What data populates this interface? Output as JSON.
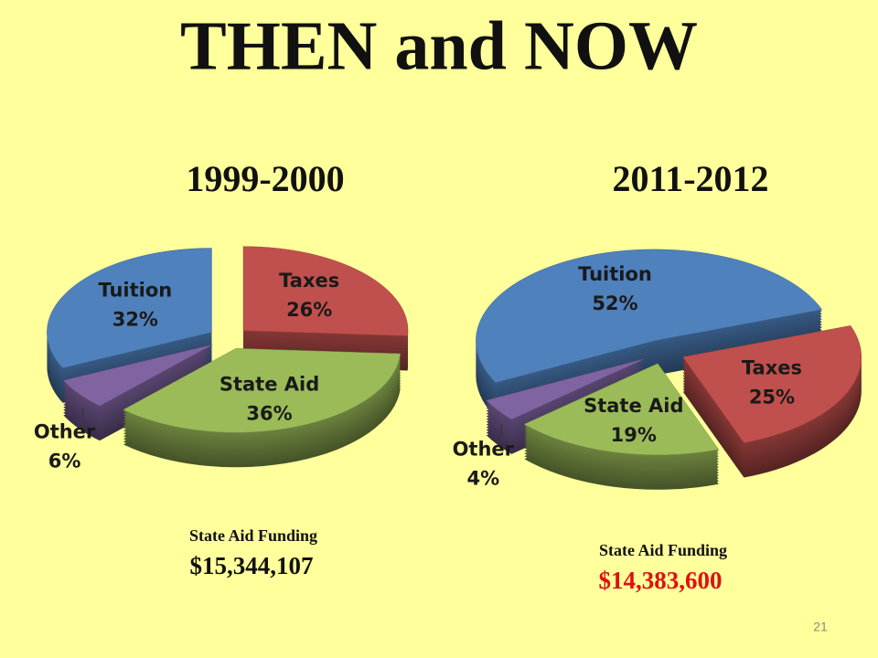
{
  "title": "THEN and NOW",
  "chart_data": [
    {
      "type": "pie",
      "title": "1999-2000",
      "categories": [
        "Taxes",
        "State Aid",
        "Other",
        "Tuition"
      ],
      "values": [
        26,
        36,
        6,
        32
      ],
      "value_labels": [
        "26%",
        "36%",
        "6%",
        "32%"
      ],
      "colors": [
        "#c0504d",
        "#9bbb59",
        "#8064a2",
        "#4f81bd"
      ],
      "note": {
        "label": "State Aid Funding",
        "amount": "$15,344,107"
      }
    },
    {
      "type": "pie",
      "title": "2011-2012",
      "categories": [
        "Taxes",
        "State Aid",
        "Other",
        "Tuition"
      ],
      "values": [
        25,
        19,
        4,
        52
      ],
      "value_labels": [
        "25%",
        "19%",
        "4%",
        "52%"
      ],
      "colors": [
        "#c0504d",
        "#9bbb59",
        "#8064a2",
        "#4f81bd"
      ],
      "note": {
        "label": "State Aid Funding",
        "amount": "$14,383,600"
      }
    }
  ],
  "page_number": "21"
}
